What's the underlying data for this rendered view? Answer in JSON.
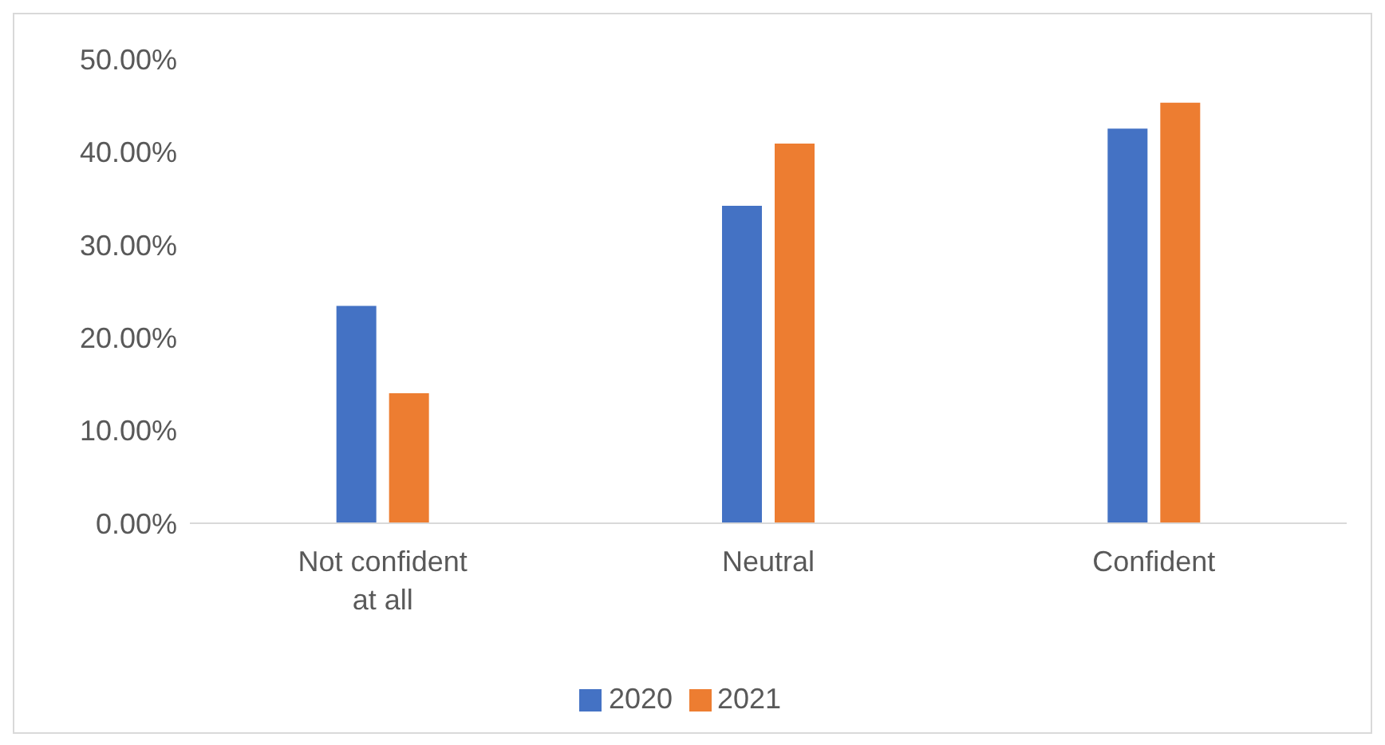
{
  "chart_data": {
    "type": "bar",
    "categories": [
      "Not confident at all",
      "Neutral",
      "Confident"
    ],
    "series": [
      {
        "name": "2020",
        "color": "#4472c4",
        "values": [
          23.4,
          34.2,
          42.5
        ]
      },
      {
        "name": "2021",
        "color": "#ed7d31",
        "values": [
          14.0,
          40.9,
          45.3
        ]
      }
    ],
    "ylim": [
      0,
      50
    ],
    "yticks": [
      {
        "value": 0,
        "label": "0.00%"
      },
      {
        "value": 10,
        "label": "10.00%"
      },
      {
        "value": 20,
        "label": "20.00%"
      },
      {
        "value": 30,
        "label": "30.00%"
      },
      {
        "value": 40,
        "label": "40.00%"
      },
      {
        "value": 50,
        "label": "50.00%"
      }
    ],
    "grid": false,
    "legend": "bottom"
  }
}
